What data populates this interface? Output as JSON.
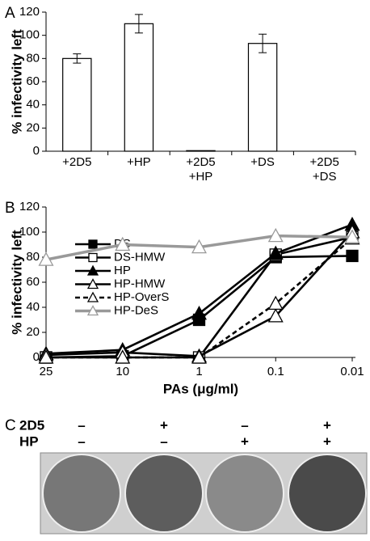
{
  "chart_data": [
    {
      "type": "bar",
      "panel_label": "A",
      "ylabel": "% infectivity left",
      "categories": [
        "+2D5",
        "+HP",
        "+2D5 +HP",
        "+DS",
        "+2D5 +DS"
      ],
      "values": [
        80,
        110,
        0.5,
        93,
        0
      ],
      "errors": [
        4,
        8,
        0,
        8,
        0
      ],
      "color": "#ffffff",
      "ylim": [
        0,
        120
      ],
      "yticks": [
        0,
        20,
        40,
        60,
        80,
        100,
        120
      ]
    },
    {
      "type": "line",
      "panel_label": "B",
      "ylabel": "% infectivity left",
      "xlabel": "PAs (μg/ml)",
      "categories": [
        "25",
        "10",
        "1",
        "0.1",
        "0.01"
      ],
      "ylim": [
        0,
        120
      ],
      "yticks": [
        0,
        20,
        40,
        60,
        80,
        100,
        120
      ],
      "series": [
        {
          "name": "DS",
          "color": "#000000",
          "marker": "square",
          "values": [
            0,
            1,
            30,
            80,
            81
          ]
        },
        {
          "name": "DS-HMW",
          "color": "#000000",
          "marker": "square-open",
          "values": [
            0,
            0,
            0,
            82,
            96
          ]
        },
        {
          "name": "HP",
          "color": "#000000",
          "marker": "triangle",
          "values": [
            3,
            6,
            35,
            83,
            106
          ]
        },
        {
          "name": "HP-HMW",
          "color": "#000000",
          "marker": "triangle-open",
          "values": [
            2,
            4,
            1,
            33,
            100
          ]
        },
        {
          "name": "HP-OverS",
          "color": "#000000",
          "marker": "triangle-open",
          "dashed": true,
          "values": [
            0,
            0,
            0,
            43,
            95
          ]
        },
        {
          "name": "HP-DeS",
          "color": "#999999",
          "marker": "triangle-open",
          "values": [
            78,
            90,
            88,
            97,
            96
          ]
        }
      ]
    }
  ],
  "panel_c": {
    "label": "C",
    "rows": [
      {
        "name": "2D5",
        "signs": [
          "–",
          "+",
          "–",
          "+"
        ]
      },
      {
        "name": "HP",
        "signs": [
          "–",
          "–",
          "+",
          "+"
        ]
      }
    ]
  }
}
